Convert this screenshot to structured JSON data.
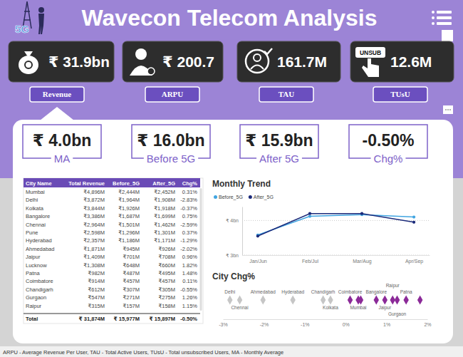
{
  "header": {
    "title": "Wavecon Telecom Analysis",
    "logo_text": "5G"
  },
  "kpis": [
    {
      "value": "₹ 31.9bn",
      "label": "Revenue"
    },
    {
      "value": "₹ 200.7",
      "label": "ARPU"
    },
    {
      "value": "161.7M",
      "label": "TAU"
    },
    {
      "value": "12.6M",
      "label": "TUsU",
      "icon_text": "UNSUB"
    }
  ],
  "summary_cards": [
    {
      "value": "₹ 4.0bn",
      "label": "MA"
    },
    {
      "value": "₹ 16.0bn",
      "label": "Before 5G"
    },
    {
      "value": "₹ 15.9bn",
      "label": "After 5G"
    },
    {
      "value": "-0.50%",
      "label": "Chg%"
    }
  ],
  "table": {
    "columns": [
      "City Name",
      "Total Revenue",
      "Before_5G",
      "After_5G",
      "Chg%"
    ],
    "rows": [
      [
        "Mumbai",
        "₹4,896M",
        "₹2,444M",
        "₹2,452M",
        "0.31%"
      ],
      [
        "Delhi",
        "₹3,872M",
        "₹1,964M",
        "₹1,908M",
        "-2.83%"
      ],
      [
        "Kolkata",
        "₹3,844M",
        "₹1,926M",
        "₹1,918M",
        "-0.37%"
      ],
      [
        "Bangalore",
        "₹3,386M",
        "₹1,687M",
        "₹1,699M",
        "0.75%"
      ],
      [
        "Chennai",
        "₹2,964M",
        "₹1,501M",
        "₹1,462M",
        "-2.59%"
      ],
      [
        "Pune",
        "₹2,598M",
        "₹1,296M",
        "₹1,301M",
        "0.37%"
      ],
      [
        "Hyderabad",
        "₹2,357M",
        "₹1,186M",
        "₹1,171M",
        "-1.29%"
      ],
      [
        "Ahmedabad",
        "₹1,871M",
        "₹945M",
        "₹926M",
        "-2.02%"
      ],
      [
        "Jaipur",
        "₹1,409M",
        "₹701M",
        "₹708M",
        "0.96%"
      ],
      [
        "Lucknow",
        "₹1,308M",
        "₹648M",
        "₹660M",
        "1.82%"
      ],
      [
        "Patna",
        "₹982M",
        "₹487M",
        "₹495M",
        "1.48%"
      ],
      [
        "Coimbatore",
        "₹914M",
        "₹457M",
        "₹457M",
        "0.11%"
      ],
      [
        "Chandigarh",
        "₹612M",
        "₹307M",
        "₹305M",
        "-0.55%"
      ],
      [
        "Gurgaon",
        "₹547M",
        "₹271M",
        "₹275M",
        "1.26%"
      ],
      [
        "Raipur",
        "₹315M",
        "₹157M",
        "₹158M",
        "1.15%"
      ]
    ],
    "total": [
      "Total",
      "₹ 31,874M",
      "₹ 15,977M",
      "₹ 15,897M",
      "-0.50%"
    ]
  },
  "chart_data": [
    {
      "type": "line",
      "title": "Monthly Trend",
      "categories": [
        "Jan/Jun",
        "Feb/Jul",
        "Mar/Aug",
        "Apr/Sep"
      ],
      "series": [
        {
          "name": "Before_5G",
          "color": "#41a5e1",
          "values": [
            3.58,
            4.12,
            4.17,
            4.1
          ]
        },
        {
          "name": "After_5G",
          "color": "#1b2a7a",
          "values": [
            3.55,
            4.2,
            4.2,
            3.95
          ]
        }
      ],
      "ylim": [
        3,
        4.4
      ],
      "yticks": [
        {
          "value": 3,
          "label": "₹ 3bn"
        },
        {
          "value": 4,
          "label": "₹ 4bn"
        }
      ],
      "grid": true,
      "legend": "top-left",
      "marker": "circle"
    },
    {
      "type": "scatter",
      "title": "City Chg%",
      "x": [
        -2.83,
        -2.59,
        -2.02,
        -1.29,
        -0.55,
        -0.37,
        0.11,
        0.31,
        0.37,
        0.75,
        0.96,
        1.15,
        1.26,
        1.48,
        1.82
      ],
      "labels": [
        "Delhi",
        "Chennai",
        "Ahmedabad",
        "Hyderabad",
        "Chandigarh",
        "Kolkata",
        "Coimbatore",
        "Mumbai",
        null,
        "Bangalore",
        "Jaipur",
        "Raipur",
        "Gurgaon",
        "Patna",
        null
      ],
      "colors": [
        "#c6c6c6",
        "#c6c6c6",
        "#c6c6c6",
        "#c6c6c6",
        "#c6c6c6",
        "#c6c6c6",
        "#8b2a98",
        "#8b2a98",
        "#8b2a98",
        "#8b2a98",
        "#8b2a98",
        "#8b2a98",
        "#8b2a98",
        "#8b2a98",
        "#8b2a98"
      ],
      "xlim": [
        -3,
        2
      ],
      "xticks": [
        {
          "value": -3,
          "label": "-3%"
        },
        {
          "value": -2,
          "label": "-2%"
        },
        {
          "value": -1,
          "label": "-1%"
        },
        {
          "value": 0,
          "label": "0%"
        },
        {
          "value": 1,
          "label": "1%"
        },
        {
          "value": 2,
          "label": "2%"
        }
      ],
      "marker": "diamond",
      "tick_labels": "x"
    }
  ],
  "footer": "ARPU - Average Revenue Per User, TAU - Total Active Users, TUsU - Total unsubscribed Users, MA - Monthly Average"
}
